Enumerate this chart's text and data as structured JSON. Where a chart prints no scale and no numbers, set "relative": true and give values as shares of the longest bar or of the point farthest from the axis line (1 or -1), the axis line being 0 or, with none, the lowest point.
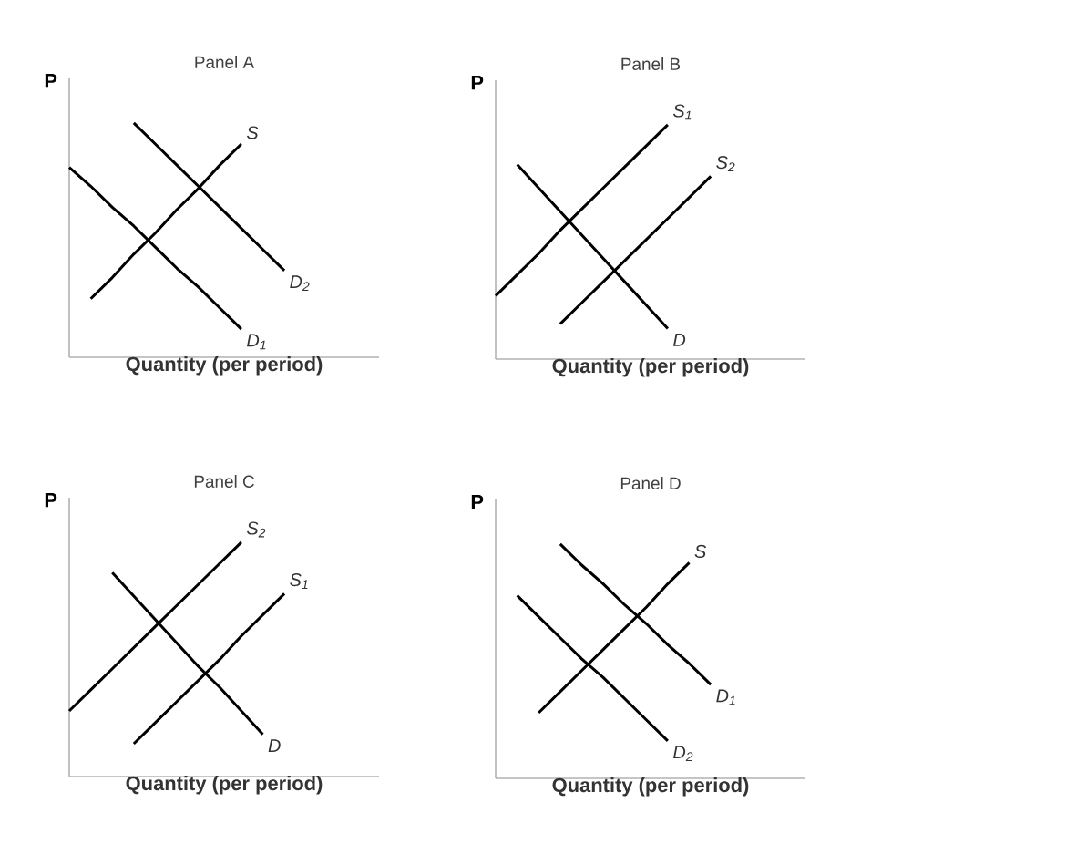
{
  "chart_data": [
    {
      "type": "line",
      "title": "Panel A",
      "xlabel": "Quantity (per period)",
      "ylabel": "P",
      "relative": true,
      "categories": [
        null,
        null,
        null,
        null,
        null,
        null,
        null,
        null,
        null,
        null,
        null
      ],
      "series": [
        {
          "name": "S",
          "color": "#000000",
          "values": [
            null,
            0.25,
            0.34,
            0.44,
            0.53,
            0.63,
            0.72,
            0.82,
            0.91,
            null,
            null
          ]
        },
        {
          "name": "D$_{1}$",
          "color": "#000000",
          "values": [
            0.81,
            0.73,
            0.64,
            0.56,
            0.47,
            0.38,
            0.3,
            0.21,
            0.12,
            null,
            null
          ]
        },
        {
          "name": "D$_{2}$",
          "color": "#000000",
          "values": [
            null,
            null,
            null,
            1.0,
            0.91,
            0.82,
            0.73,
            0.64,
            0.55,
            0.46,
            0.37
          ]
        }
      ]
    },
    {
      "type": "line",
      "title": "Panel B",
      "xlabel": "Quantity (per period)",
      "ylabel": "P",
      "relative": true,
      "categories": [
        null,
        null,
        null,
        null,
        null,
        null,
        null,
        null,
        null,
        null,
        null
      ],
      "series": [
        {
          "name": "S$_{1}$",
          "color": "#000000",
          "values": [
            0.27,
            0.36,
            0.45,
            0.55,
            0.64,
            0.73,
            0.82,
            0.91,
            1.0,
            null,
            null
          ]
        },
        {
          "name": "S$_{2}$",
          "color": "#000000",
          "values": [
            null,
            null,
            null,
            0.15,
            0.24,
            0.33,
            0.42,
            0.51,
            0.6,
            0.69,
            0.78
          ]
        },
        {
          "name": "D",
          "color": "#000000",
          "values": [
            null,
            0.83,
            0.73,
            0.63,
            0.53,
            0.43,
            0.33,
            0.23,
            0.13,
            null,
            null
          ]
        }
      ]
    },
    {
      "type": "line",
      "title": "Panel C",
      "xlabel": "Quantity (per period)",
      "ylabel": "P",
      "relative": true,
      "categories": [
        null,
        null,
        null,
        null,
        null,
        null,
        null,
        null,
        null,
        null,
        null
      ],
      "series": [
        {
          "name": "S$_{2}$",
          "color": "#000000",
          "values": [
            0.28,
            0.37,
            0.46,
            0.55,
            0.64,
            0.73,
            0.82,
            0.91,
            1.0,
            null,
            null
          ]
        },
        {
          "name": "S$_{1}$",
          "color": "#000000",
          "values": [
            null,
            null,
            null,
            0.14,
            0.23,
            0.32,
            0.41,
            0.5,
            0.6,
            0.69,
            0.78
          ]
        },
        {
          "name": "D",
          "color": "#000000",
          "values": [
            null,
            null,
            0.87,
            0.77,
            0.67,
            0.57,
            0.47,
            0.38,
            0.28,
            0.18,
            null
          ]
        }
      ]
    },
    {
      "type": "line",
      "title": "Panel D",
      "xlabel": "Quantity (per period)",
      "ylabel": "P",
      "relative": true,
      "categories": [
        null,
        null,
        null,
        null,
        null,
        null,
        null,
        null,
        null,
        null,
        null
      ],
      "series": [
        {
          "name": "S",
          "color": "#000000",
          "values": [
            null,
            null,
            0.28,
            0.37,
            0.46,
            0.55,
            0.64,
            0.73,
            0.83,
            0.92,
            null
          ]
        },
        {
          "name": "D$_{1}$",
          "color": "#000000",
          "values": [
            null,
            null,
            null,
            1.0,
            0.91,
            0.83,
            0.74,
            0.66,
            0.57,
            0.49,
            0.4
          ]
        },
        {
          "name": "D$_{2}$",
          "color": "#000000",
          "values": [
            null,
            0.78,
            0.69,
            0.6,
            0.51,
            0.43,
            0.34,
            0.25,
            0.16,
            null,
            null
          ]
        }
      ]
    }
  ]
}
